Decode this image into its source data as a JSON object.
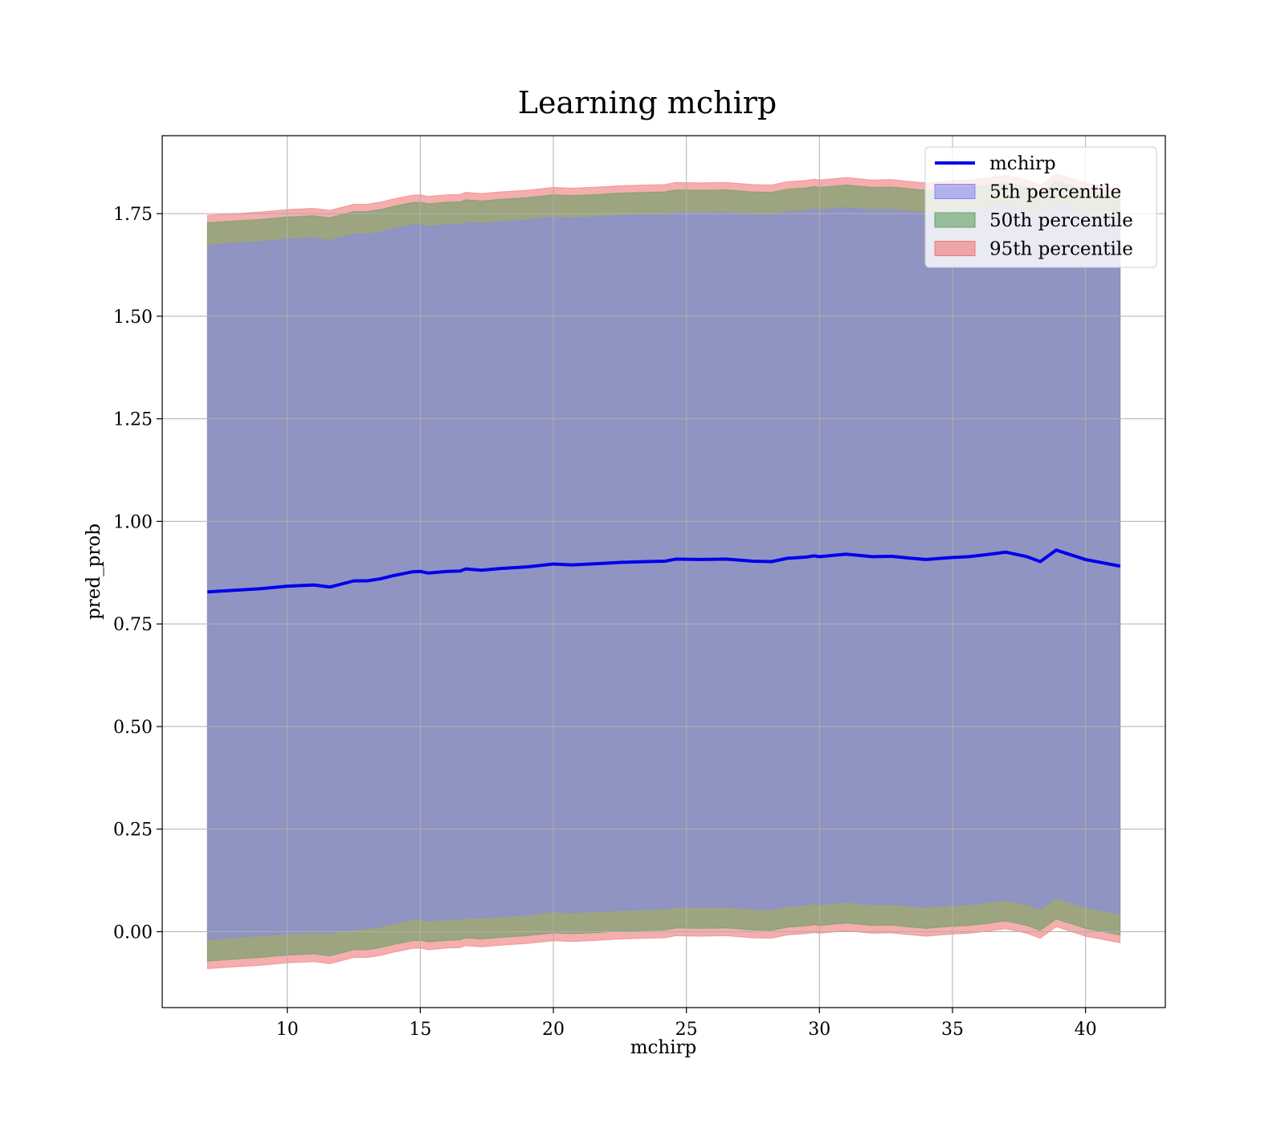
{
  "chart_data": {
    "type": "area",
    "title": "Learning mchirp",
    "xlabel": "mchirp",
    "ylabel": "pred_prob",
    "xlim": [
      5.3,
      43.0
    ],
    "ylim": [
      -0.185,
      1.94
    ],
    "grid": true,
    "legend_position": "top-right",
    "x_ticks": [
      10,
      15,
      20,
      25,
      30,
      35,
      40
    ],
    "x_tick_labels": [
      "10",
      "15",
      "20",
      "25",
      "30",
      "35",
      "40"
    ],
    "y_ticks": [
      0.0,
      0.25,
      0.5,
      0.75,
      1.0,
      1.25,
      1.5,
      1.75
    ],
    "y_tick_labels": [
      "0.00",
      "0.25",
      "0.50",
      "0.75",
      "1.00",
      "1.25",
      "1.50",
      "1.75"
    ],
    "x": [
      7.0,
      8.0,
      9.0,
      10.0,
      11.0,
      11.6,
      12.5,
      13.0,
      13.5,
      14.0,
      14.7,
      15.0,
      15.3,
      16.0,
      16.5,
      16.7,
      17.3,
      18.0,
      19.0,
      20.0,
      20.7,
      21.7,
      22.5,
      23.5,
      24.2,
      24.6,
      25.5,
      26.5,
      27.5,
      28.2,
      28.8,
      29.5,
      29.8,
      30.0,
      31.0,
      32.0,
      32.7,
      33.3,
      34.0,
      35.0,
      35.6,
      36.3,
      37.0,
      37.8,
      38.3,
      38.9,
      40.0,
      41.3
    ],
    "series": [
      {
        "name": "mchirp",
        "type": "line",
        "color": "#0000ee",
        "values": [
          0.828,
          0.832,
          0.836,
          0.842,
          0.845,
          0.84,
          0.855,
          0.855,
          0.86,
          0.868,
          0.877,
          0.878,
          0.874,
          0.878,
          0.879,
          0.884,
          0.881,
          0.885,
          0.889,
          0.896,
          0.894,
          0.897,
          0.9,
          0.902,
          0.903,
          0.908,
          0.907,
          0.908,
          0.903,
          0.902,
          0.91,
          0.913,
          0.916,
          0.914,
          0.92,
          0.914,
          0.915,
          0.911,
          0.907,
          0.912,
          0.914,
          0.919,
          0.925,
          0.914,
          0.902,
          0.93,
          0.907,
          0.891
        ]
      },
      {
        "name": "5th percentile",
        "type": "band",
        "color": "#8888ee",
        "lower": [
          -0.02,
          -0.014,
          -0.01,
          -0.005,
          -0.002,
          -0.005,
          0.005,
          0.008,
          0.012,
          0.02,
          0.029,
          0.03,
          0.026,
          0.03,
          0.03,
          0.035,
          0.033,
          0.037,
          0.041,
          0.048,
          0.046,
          0.049,
          0.052,
          0.054,
          0.055,
          0.06,
          0.059,
          0.06,
          0.055,
          0.054,
          0.062,
          0.065,
          0.068,
          0.066,
          0.072,
          0.066,
          0.067,
          0.063,
          0.059,
          0.064,
          0.066,
          0.071,
          0.077,
          0.066,
          0.054,
          0.082,
          0.059,
          0.043
        ],
        "upper": [
          1.672,
          1.678,
          1.682,
          1.688,
          1.691,
          1.685,
          1.7,
          1.7,
          1.705,
          1.713,
          1.722,
          1.723,
          1.719,
          1.723,
          1.724,
          1.729,
          1.726,
          1.73,
          1.734,
          1.741,
          1.739,
          1.742,
          1.745,
          1.747,
          1.748,
          1.753,
          1.752,
          1.753,
          1.748,
          1.747,
          1.755,
          1.758,
          1.761,
          1.759,
          1.765,
          1.759,
          1.76,
          1.756,
          1.752,
          1.757,
          1.759,
          1.764,
          1.77,
          1.759,
          1.747,
          1.775,
          1.752,
          1.736
        ]
      },
      {
        "name": "50th percentile",
        "type": "band",
        "color": "#60a060",
        "lower": [
          -0.072,
          -0.067,
          -0.063,
          -0.057,
          -0.054,
          -0.059,
          -0.044,
          -0.044,
          -0.039,
          -0.031,
          -0.022,
          -0.021,
          -0.025,
          -0.021,
          -0.02,
          -0.015,
          -0.018,
          -0.014,
          -0.01,
          -0.003,
          -0.005,
          -0.002,
          0.001,
          0.003,
          0.004,
          0.009,
          0.008,
          0.009,
          0.004,
          0.003,
          0.011,
          0.014,
          0.017,
          0.015,
          0.021,
          0.015,
          0.016,
          0.012,
          0.008,
          0.013,
          0.015,
          0.02,
          0.026,
          0.015,
          0.003,
          0.031,
          0.008,
          -0.008
        ],
        "upper": [
          1.728,
          1.732,
          1.736,
          1.742,
          1.745,
          1.74,
          1.755,
          1.755,
          1.76,
          1.768,
          1.777,
          1.778,
          1.774,
          1.778,
          1.779,
          1.784,
          1.781,
          1.785,
          1.789,
          1.796,
          1.794,
          1.797,
          1.8,
          1.802,
          1.803,
          1.808,
          1.807,
          1.808,
          1.803,
          1.802,
          1.81,
          1.813,
          1.816,
          1.814,
          1.82,
          1.814,
          1.815,
          1.811,
          1.807,
          1.812,
          1.814,
          1.819,
          1.825,
          1.814,
          1.802,
          1.83,
          1.807,
          1.791
        ]
      },
      {
        "name": "95th percentile",
        "type": "band",
        "color": "#ee7777",
        "lower": [
          -0.09,
          -0.086,
          -0.082,
          -0.076,
          -0.073,
          -0.078,
          -0.063,
          -0.063,
          -0.058,
          -0.05,
          -0.041,
          -0.04,
          -0.044,
          -0.04,
          -0.039,
          -0.034,
          -0.037,
          -0.033,
          -0.029,
          -0.022,
          -0.024,
          -0.021,
          -0.018,
          -0.016,
          -0.015,
          -0.01,
          -0.011,
          -0.01,
          -0.015,
          -0.016,
          -0.008,
          -0.005,
          -0.002,
          -0.004,
          0.002,
          -0.004,
          -0.003,
          -0.007,
          -0.011,
          -0.006,
          -0.004,
          0.001,
          0.007,
          -0.004,
          -0.016,
          0.012,
          -0.011,
          -0.027
        ],
        "upper": [
          1.746,
          1.75,
          1.754,
          1.76,
          1.763,
          1.758,
          1.773,
          1.773,
          1.778,
          1.786,
          1.795,
          1.796,
          1.792,
          1.796,
          1.797,
          1.802,
          1.799,
          1.803,
          1.807,
          1.814,
          1.812,
          1.815,
          1.818,
          1.82,
          1.821,
          1.826,
          1.825,
          1.826,
          1.821,
          1.82,
          1.828,
          1.831,
          1.834,
          1.832,
          1.838,
          1.832,
          1.833,
          1.829,
          1.825,
          1.83,
          1.832,
          1.837,
          1.843,
          1.832,
          1.82,
          1.848,
          1.825,
          1.809
        ]
      }
    ],
    "legend": [
      "mchirp",
      "5th percentile",
      "50th percentile",
      "95th percentile"
    ]
  }
}
